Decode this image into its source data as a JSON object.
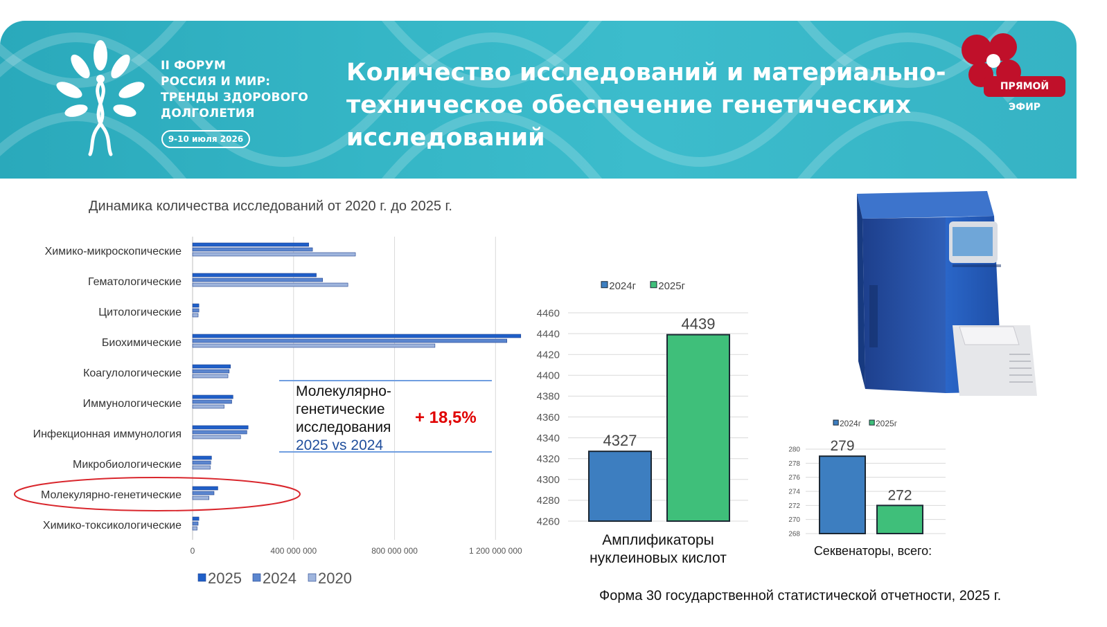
{
  "header": {
    "forum_lines": [
      "II ФОРУМ",
      "РОССИЯ И МИР:",
      "ТРЕНДЫ ЗДОРОВОГО",
      "ДОЛГОЛЕТИЯ"
    ],
    "forum_date": "9-10 июля 2026",
    "title_lines": [
      "Количество исследований и материально-",
      "техническое обеспечение генетических",
      "исследований"
    ],
    "live_badge": "ПРЯМОЙ ЭФИР"
  },
  "left_chart_title": "Динамика количества исследований от 2020 г. до 2025 г.",
  "callout": {
    "lines": [
      "Молекулярно-",
      "генетические",
      "исследования"
    ],
    "compare": "2025 vs 2024",
    "percent": "+ 18,5%"
  },
  "amplifier_label_lines": [
    "Амплификаторы",
    "нуклеиновых кислот"
  ],
  "sequencer_label": "Секвенаторы, всего:",
  "footer_note": "Форма 30 государственной статистической отчетности, 2025 г.",
  "colors": {
    "bar_2025": "#1f5fc8",
    "bar_2024": "#5b86cf",
    "bar_2020": "#9fb5dd",
    "bar_blue": "#3d7ec0",
    "bar_green": "#3fbf7a",
    "banner": "#35b6c6",
    "highlight_ellipse": "#d9262c",
    "percent": "#e00000"
  },
  "chart_data": [
    {
      "type": "bar",
      "orientation": "horizontal",
      "categories": [
        "Химико-микроскопические",
        "Гематологические",
        "Цитологические",
        "Биохимические",
        "Коагулологические",
        "Иммунологические",
        "Инфекционная иммунология",
        "Микробиологические",
        "Молекулярно-генетические",
        "Химико-токсикологические"
      ],
      "series": [
        {
          "name": "2025",
          "values": [
            460000000,
            490000000,
            25000000,
            1300000000,
            150000000,
            160000000,
            220000000,
            75000000,
            100000000,
            25000000
          ]
        },
        {
          "name": "2024",
          "values": [
            475000000,
            515000000,
            25000000,
            1245000000,
            145000000,
            155000000,
            215000000,
            72000000,
            85000000,
            22000000
          ]
        },
        {
          "name": "2020",
          "values": [
            645000000,
            615000000,
            22000000,
            960000000,
            140000000,
            125000000,
            190000000,
            70000000,
            65000000,
            18000000
          ]
        }
      ],
      "xlim": [
        0,
        1350000000
      ],
      "x_ticks": [
        "0",
        "400 000 000",
        "800 000 000",
        "1 200 000 000"
      ],
      "x_tick_values": [
        0,
        400000000,
        800000000,
        1200000000
      ],
      "legend": [
        "2025",
        "2024",
        "2020"
      ],
      "legend_position": "bottom",
      "highlighted_category": "Молекулярно-генетические",
      "grid": "vertical"
    },
    {
      "type": "bar",
      "categories": [
        "2024г",
        "2025г"
      ],
      "values": [
        4327,
        4439
      ],
      "data_labels": [
        "4327",
        "4439"
      ],
      "ylim": [
        4260,
        4460
      ],
      "y_ticks": [
        "4460",
        "4440",
        "4420",
        "4400",
        "4380",
        "4360",
        "4340",
        "4320",
        "4300",
        "4280",
        "4260"
      ],
      "legend": [
        "2024г",
        "2025г"
      ],
      "legend_position": "top",
      "grid": "horizontal"
    },
    {
      "type": "bar",
      "categories": [
        "2024г",
        "2025г"
      ],
      "values": [
        279,
        272
      ],
      "data_labels": [
        "279",
        "272"
      ],
      "ylim": [
        268,
        280
      ],
      "y_ticks": [
        "280",
        "278",
        "276",
        "274",
        "272",
        "270",
        "268"
      ],
      "legend": [
        "2024г",
        "2025г"
      ],
      "legend_position": "top",
      "grid": "horizontal"
    }
  ]
}
